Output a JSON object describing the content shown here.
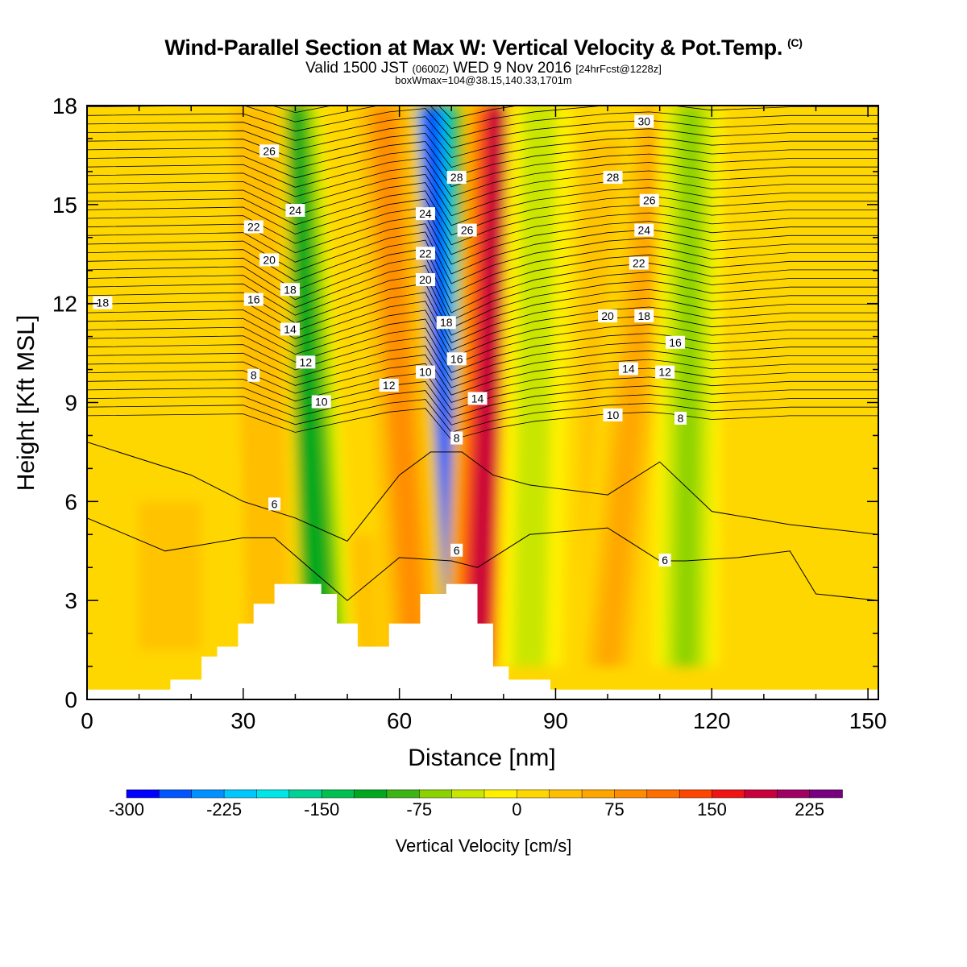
{
  "header": {
    "title": "Wind-Parallel Section at Max W: Vertical Velocity & Pot.Temp.",
    "copyright_mark": "(C)",
    "valid_prefix": "Valid 1500 JST",
    "valid_utc": "(0600Z)",
    "valid_date": "WED 9 Nov 2016",
    "forecast": "[24hrFcst@1228z]",
    "box_info": "boxWmax=104@38.15,140.33,1701m"
  },
  "chart_data": {
    "type": "heatmap",
    "xlabel": "Distance [nm]",
    "ylabel": "Height [Kft MSL]",
    "xlim": [
      0,
      152
    ],
    "ylim": [
      0,
      18
    ],
    "xticks": [
      0,
      30,
      60,
      90,
      120,
      150
    ],
    "yticks": [
      0,
      3,
      6,
      9,
      12,
      15,
      18
    ],
    "colorbar": {
      "label": "Vertical Velocity [cm/s]",
      "min": -300,
      "max": 250,
      "step": 25,
      "tick_labels": [
        -300,
        -225,
        -150,
        -75,
        0,
        75,
        150,
        225
      ],
      "colors": [
        "#0000ff",
        "#0055ff",
        "#0090ff",
        "#00c8ff",
        "#00e6e6",
        "#00d296",
        "#00c050",
        "#00a820",
        "#3cb414",
        "#8cd200",
        "#c8e600",
        "#fff000",
        "#ffd700",
        "#ffbe00",
        "#ffa500",
        "#ff8c00",
        "#ff6e00",
        "#ff4600",
        "#f01414",
        "#c8003c",
        "#a00064",
        "#780080"
      ]
    },
    "velocity_bands": [
      {
        "x_bottom": 45,
        "x_top": 39,
        "value": -100
      },
      {
        "x_bottom": 70,
        "x_top": 66,
        "value": -250
      },
      {
        "x_bottom": 75,
        "x_top": 79,
        "value": 175
      },
      {
        "x_bottom": 63,
        "x_top": 57,
        "value": 75
      },
      {
        "x_bottom": 100,
        "x_top": 110,
        "value": 50
      },
      {
        "x_bottom": 85,
        "x_top": 87,
        "value": -40
      },
      {
        "x_bottom": 115,
        "x_top": 116,
        "value": -50
      },
      {
        "x_bottom": 35,
        "x_top": 32,
        "value": 40
      }
    ],
    "terrain": {
      "x": [
        0,
        16,
        16,
        22,
        22,
        25,
        25,
        29,
        29,
        32,
        32,
        36,
        36,
        45,
        45,
        48,
        48,
        52,
        52,
        58,
        58,
        61,
        61,
        64,
        64,
        69,
        69,
        75,
        75,
        78,
        78,
        81,
        81,
        89,
        89,
        152
      ],
      "height_kft": [
        0.3,
        0.3,
        0.6,
        0.6,
        1.3,
        1.3,
        1.6,
        1.6,
        2.3,
        2.3,
        2.9,
        2.9,
        3.5,
        3.5,
        3.2,
        3.2,
        2.3,
        2.3,
        1.6,
        1.6,
        2.3,
        2.3,
        2.3,
        2.3,
        3.2,
        3.2,
        3.5,
        3.5,
        2.3,
        2.3,
        1.0,
        1.0,
        0.6,
        0.6,
        0.3,
        0.3
      ]
    },
    "isentropes": {
      "series": [
        {
          "theta": 6,
          "x": [
            0,
            15,
            30,
            36,
            50,
            60,
            70,
            75,
            85,
            100,
            110,
            115,
            125,
            135,
            140,
            152
          ],
          "y": [
            5.5,
            4.5,
            4.9,
            4.9,
            3.0,
            4.3,
            4.2,
            4.0,
            5.0,
            5.2,
            4.2,
            4.2,
            4.3,
            4.5,
            3.2,
            3.0
          ]
        },
        {
          "theta": 8,
          "x": [
            0,
            20,
            30,
            40,
            50,
            60,
            66,
            72,
            78,
            85,
            100,
            110,
            120,
            135,
            152
          ],
          "y": [
            7.8,
            6.8,
            6.0,
            5.5,
            4.8,
            6.8,
            7.5,
            7.5,
            6.8,
            6.5,
            6.2,
            7.2,
            5.7,
            5.3,
            5.0
          ]
        }
      ],
      "labels": [
        {
          "text": "18",
          "x": 3,
          "y": 12.0
        },
        {
          "text": "26",
          "x": 35,
          "y": 16.6
        },
        {
          "text": "24",
          "x": 40,
          "y": 14.8
        },
        {
          "text": "22",
          "x": 32,
          "y": 14.3
        },
        {
          "text": "20",
          "x": 35,
          "y": 13.3
        },
        {
          "text": "18",
          "x": 39,
          "y": 12.4
        },
        {
          "text": "16",
          "x": 32,
          "y": 12.1
        },
        {
          "text": "14",
          "x": 39,
          "y": 11.2
        },
        {
          "text": "12",
          "x": 42,
          "y": 10.2
        },
        {
          "text": "8",
          "x": 32,
          "y": 9.8
        },
        {
          "text": "10",
          "x": 45,
          "y": 9.0
        },
        {
          "text": "28",
          "x": 71,
          "y": 15.8
        },
        {
          "text": "24",
          "x": 65,
          "y": 14.7
        },
        {
          "text": "26",
          "x": 73,
          "y": 14.2
        },
        {
          "text": "22",
          "x": 65,
          "y": 13.5
        },
        {
          "text": "20",
          "x": 65,
          "y": 12.7
        },
        {
          "text": "18",
          "x": 69,
          "y": 11.4
        },
        {
          "text": "16",
          "x": 71,
          "y": 10.3
        },
        {
          "text": "10",
          "x": 65,
          "y": 9.9
        },
        {
          "text": "12",
          "x": 58,
          "y": 9.5
        },
        {
          "text": "14",
          "x": 75,
          "y": 9.1
        },
        {
          "text": "8",
          "x": 71,
          "y": 7.9
        },
        {
          "text": "6",
          "x": 71,
          "y": 4.5
        },
        {
          "text": "6",
          "x": 36,
          "y": 5.9
        },
        {
          "text": "30",
          "x": 107,
          "y": 17.5
        },
        {
          "text": "28",
          "x": 101,
          "y": 15.8
        },
        {
          "text": "26",
          "x": 108,
          "y": 15.1
        },
        {
          "text": "24",
          "x": 107,
          "y": 14.2
        },
        {
          "text": "22",
          "x": 106,
          "y": 13.2
        },
        {
          "text": "20",
          "x": 100,
          "y": 11.6
        },
        {
          "text": "18",
          "x": 107,
          "y": 11.6
        },
        {
          "text": "16",
          "x": 113,
          "y": 10.8
        },
        {
          "text": "14",
          "x": 104,
          "y": 10.0
        },
        {
          "text": "12",
          "x": 111,
          "y": 9.9
        },
        {
          "text": "10",
          "x": 101,
          "y": 8.6
        },
        {
          "text": "8",
          "x": 114,
          "y": 8.5
        },
        {
          "text": "6",
          "x": 111,
          "y": 4.2
        }
      ]
    }
  }
}
